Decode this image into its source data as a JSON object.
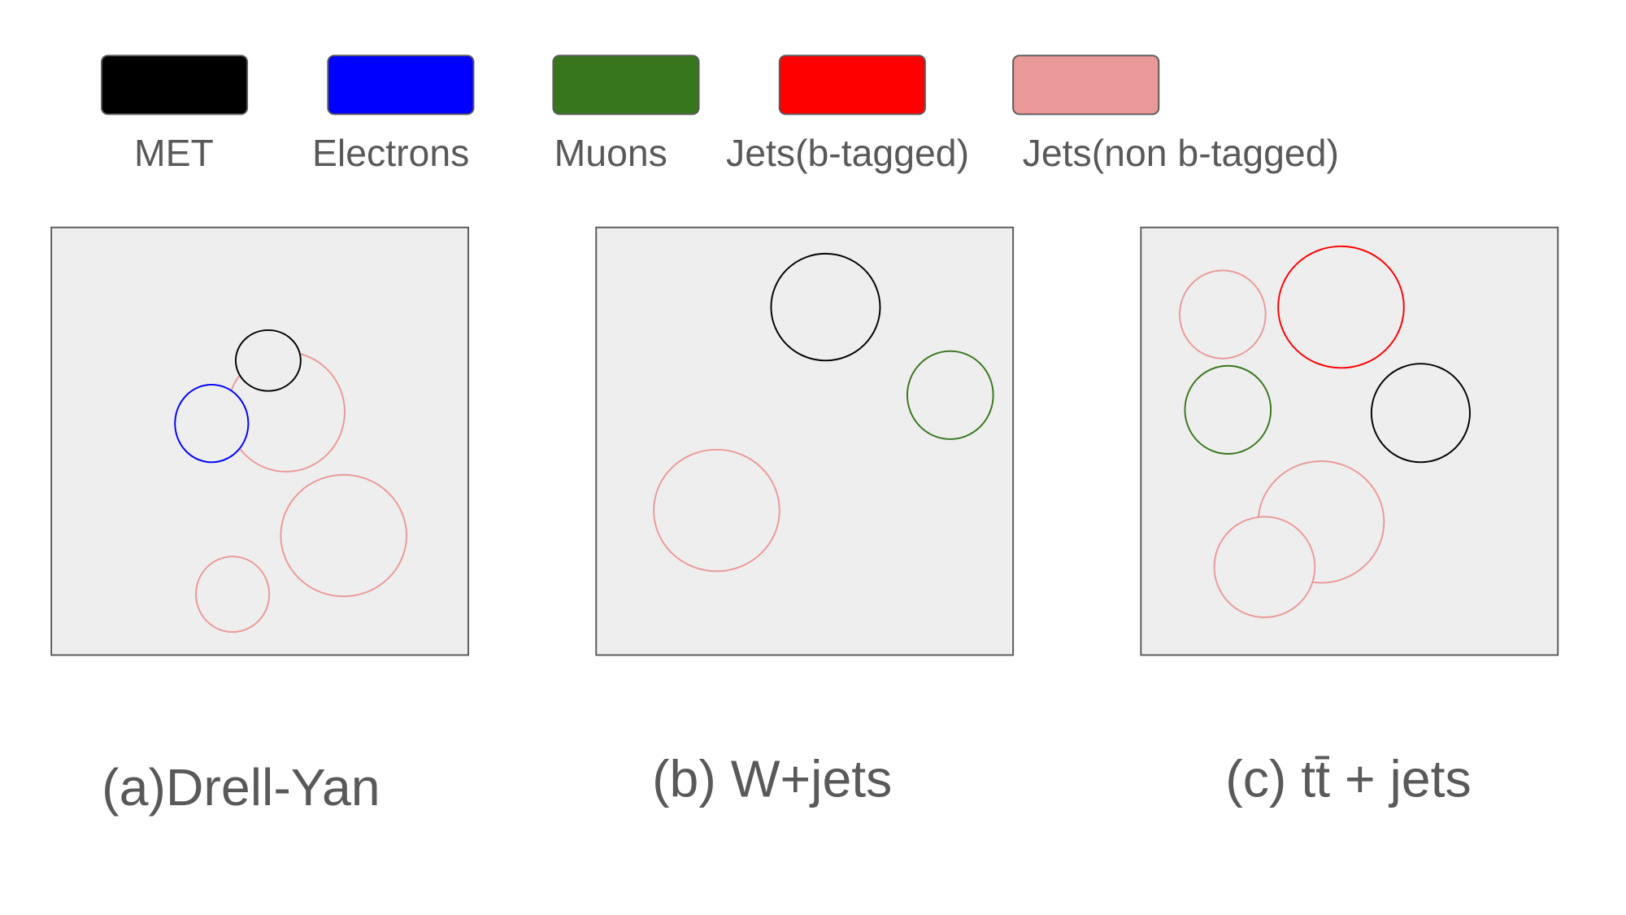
{
  "legend": [
    {
      "label": "MET"
    },
    {
      "label": "Electrons"
    },
    {
      "label": "Muons"
    },
    {
      "label": "Jets(b-tagged)"
    },
    {
      "label": "Jets(non b-tagged)"
    }
  ],
  "panels": [
    {
      "caption": "(a)Drell-Yan"
    },
    {
      "caption": "(b) W+jets"
    },
    {
      "caption": "(c)  tt̄ + jets"
    }
  ]
}
